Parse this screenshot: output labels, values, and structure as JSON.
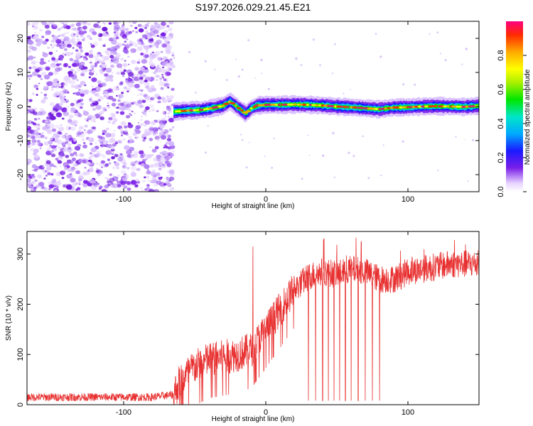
{
  "title": "S197.2026.029.21.45.E21",
  "chart_data": [
    {
      "type": "heatmap",
      "name": "spectrogram",
      "xlabel": "Height of straight line (km)",
      "ylabel": "Frequency (Hz)",
      "xlim": [
        -168,
        150
      ],
      "ylim": [
        -25,
        25
      ],
      "xticks": [
        -100,
        0,
        100
      ],
      "yticks": [
        -20,
        -10,
        0,
        10,
        20
      ],
      "noise_region_end_km": -65,
      "signal_track": {
        "x": [
          -65,
          -55,
          -45,
          -38,
          -30,
          -25,
          -22,
          -18,
          -14,
          -10,
          -6,
          0,
          10,
          20,
          30,
          40,
          50,
          60,
          70,
          80,
          90,
          100,
          110,
          120,
          130,
          140,
          150
        ],
        "frequency": [
          -1.5,
          -1.2,
          -1.0,
          -0.5,
          0.2,
          1.5,
          0.5,
          -0.8,
          -2.0,
          -0.5,
          0.3,
          0.5,
          0.5,
          0.6,
          0.5,
          0.3,
          0.0,
          -0.2,
          -0.5,
          -0.8,
          -0.3,
          -0.2,
          0.0,
          0.1,
          0.0,
          -0.1,
          0.2
        ]
      },
      "colorbar": {
        "label": "Normalized spectral amplitude",
        "range": [
          0,
          1
        ],
        "ticks": [
          "0.0",
          "0.2",
          "0.4",
          "0.6",
          "0.8"
        ]
      }
    },
    {
      "type": "line",
      "name": "snr",
      "xlabel": "Height of straight line (km)",
      "ylabel": "SNR (10 * v/v)",
      "xlim": [
        -168,
        150
      ],
      "ylim": [
        0,
        345
      ],
      "xticks": [
        -100,
        0,
        100
      ],
      "yticks": [
        0,
        100,
        200,
        300
      ],
      "color": "#e83030",
      "trend": {
        "x": [
          -168,
          -120,
          -80,
          -65,
          -60,
          -50,
          -40,
          -30,
          -20,
          -10,
          0,
          10,
          15,
          20,
          30,
          40,
          50,
          60,
          70,
          80,
          90,
          100,
          110,
          120,
          130,
          140,
          150
        ],
        "snr": [
          15,
          15,
          15,
          20,
          50,
          75,
          90,
          95,
          100,
          110,
          150,
          190,
          210,
          230,
          255,
          265,
          260,
          270,
          265,
          250,
          250,
          265,
          270,
          275,
          280,
          280,
          280
        ]
      },
      "spike_up": {
        "x": -9,
        "snr": 315
      },
      "dropouts_km": [
        30,
        35,
        40,
        44,
        48,
        52,
        56,
        60,
        65,
        70,
        75,
        80
      ]
    }
  ],
  "colors": {
    "axis": "#000000",
    "line": "#e83030",
    "noise": "#7a1ee8"
  }
}
